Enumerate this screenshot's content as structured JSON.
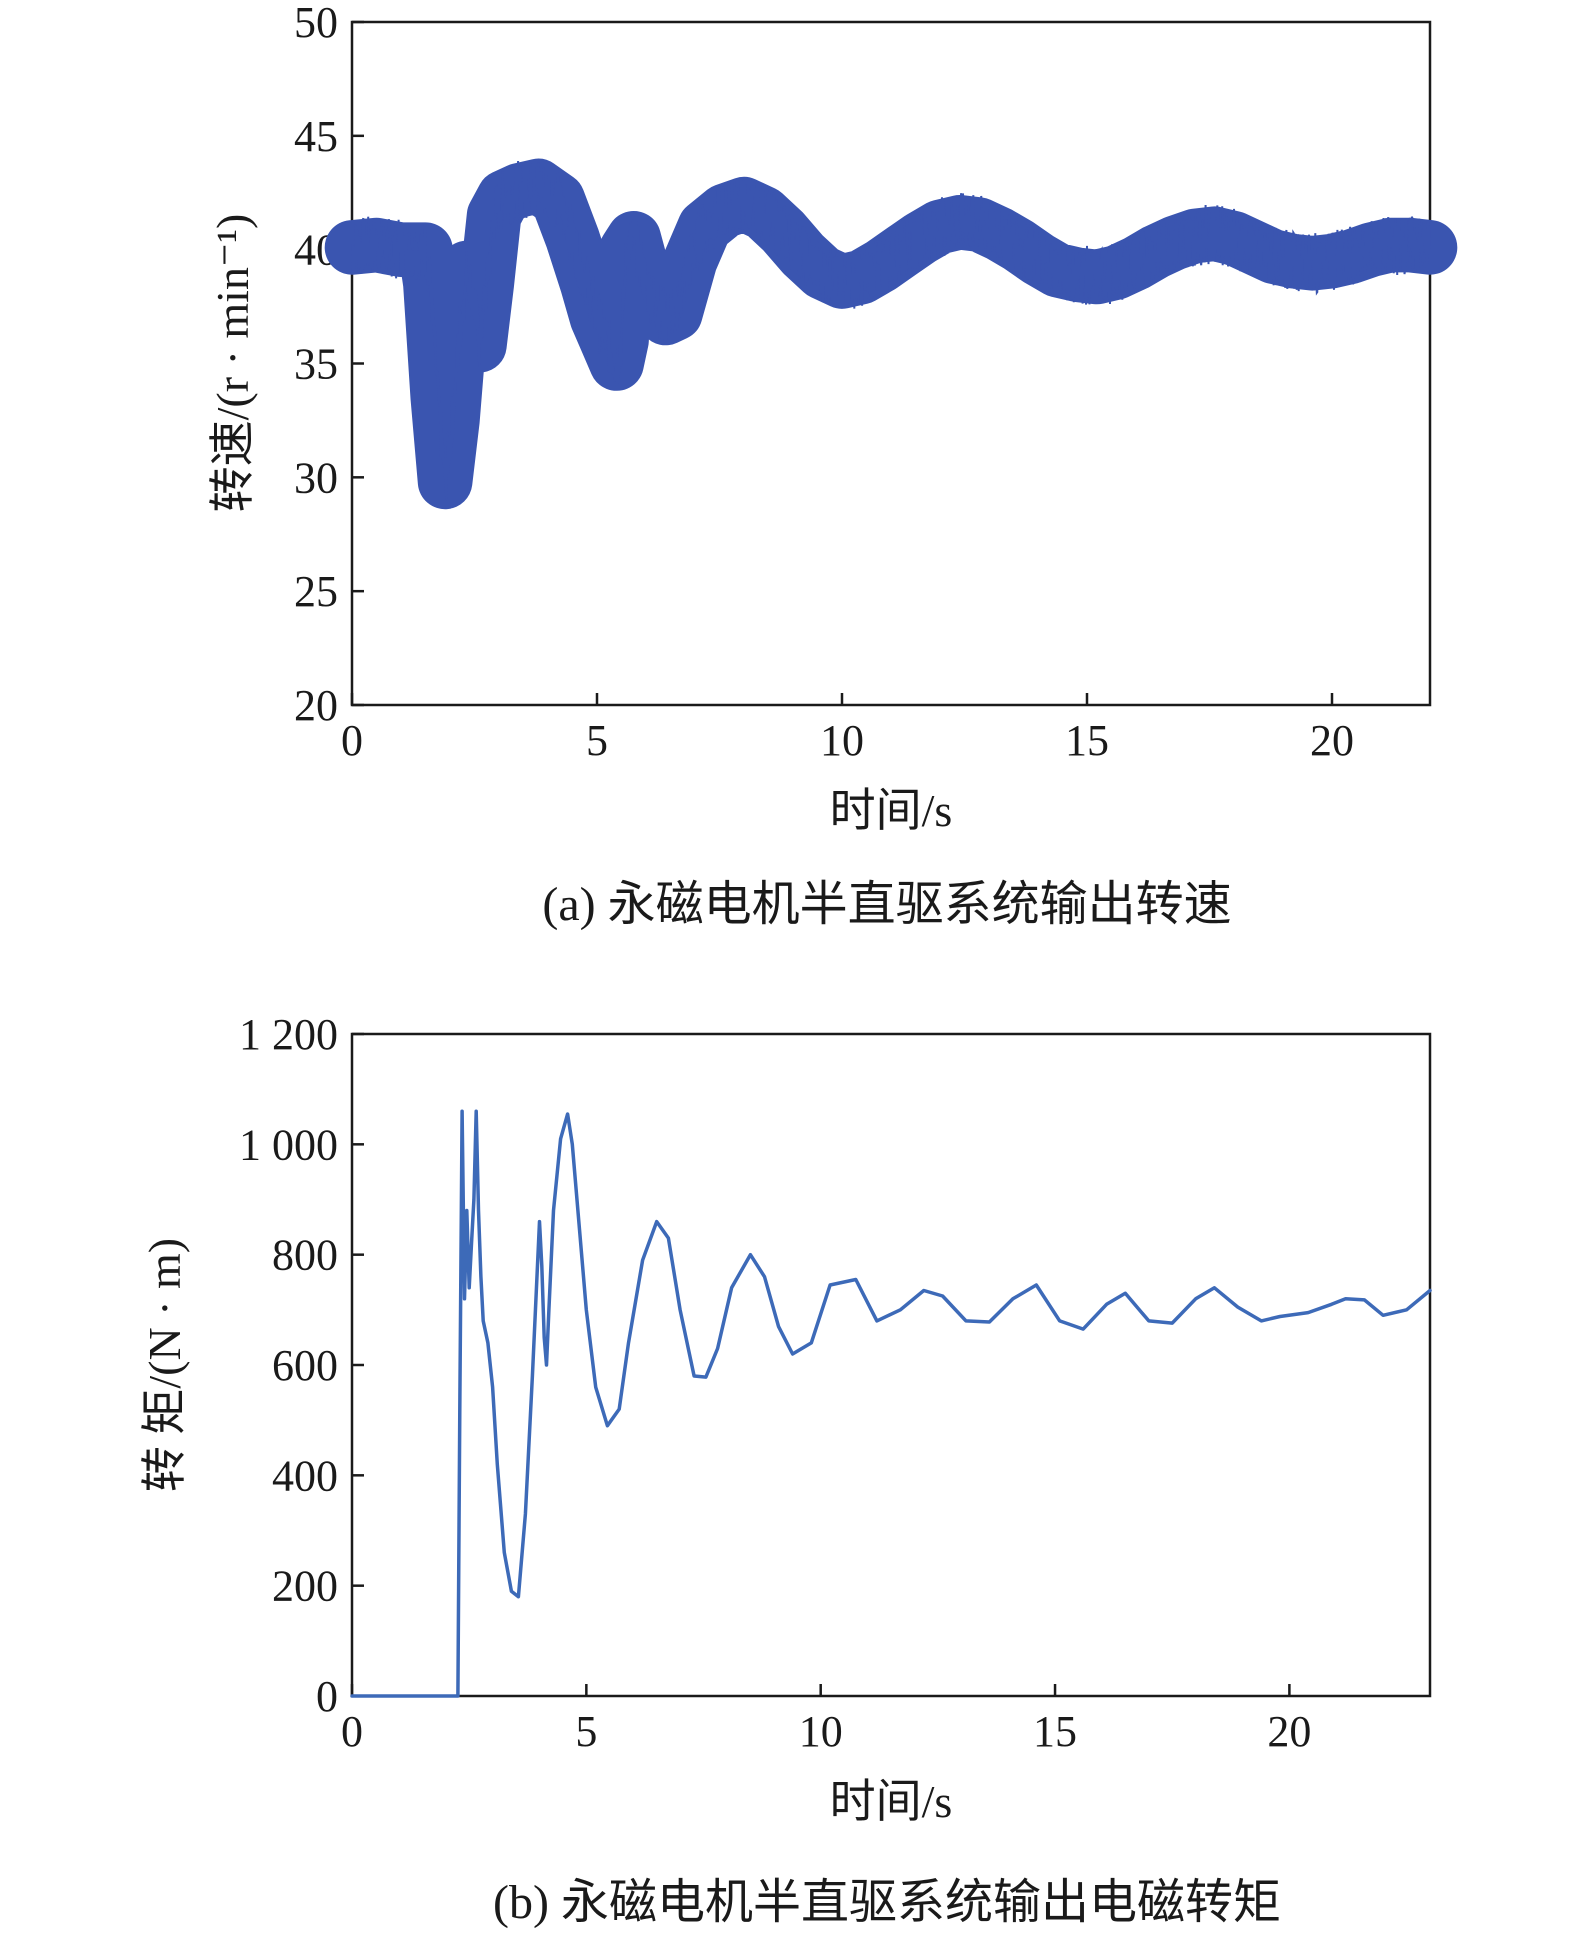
{
  "chart_data": [
    {
      "type": "line",
      "caption": "(a) 永磁电机半直驱系统输出转速",
      "xlabel": "时间/s",
      "ylabel": "转速/(r · min⁻¹)",
      "xlim": [
        0,
        22
      ],
      "ylim": [
        20,
        50
      ],
      "xticks": [
        "0",
        "5",
        "10",
        "15",
        "20"
      ],
      "yticks": [
        "20",
        "25",
        "30",
        "35",
        "40",
        "45",
        "50"
      ],
      "grid": false,
      "color": "#3a55b0",
      "noise_band": 1.2,
      "series": [
        {
          "x": [
            0,
            0.5,
            1.0,
            1.5,
            1.6,
            1.75,
            1.9,
            2.05,
            2.2,
            2.35,
            2.5,
            2.6,
            2.75,
            2.9,
            3.1,
            3.4,
            3.8,
            4.2,
            4.5,
            4.8,
            5.0,
            5.2,
            5.4,
            5.5,
            5.6,
            5.75,
            6.0,
            6.2,
            6.4,
            6.6,
            6.9,
            7.2,
            7.6,
            8.0,
            8.4,
            8.8,
            9.2,
            9.6,
            10.0,
            10.4,
            10.8,
            11.2,
            11.6,
            12.0,
            12.4,
            12.8,
            13.2,
            13.6,
            14.0,
            14.4,
            14.8,
            15.2,
            15.6,
            16.0,
            16.4,
            16.8,
            17.2,
            17.6,
            18.0,
            18.4,
            18.8,
            19.2,
            19.6,
            20.0,
            20.4,
            20.8,
            21.2,
            21.6,
            22.0
          ],
          "y": [
            40.1,
            40.2,
            40.0,
            40.0,
            38.5,
            33.5,
            29.8,
            32.5,
            36.5,
            39.2,
            37.5,
            35.8,
            38.5,
            41.5,
            42.3,
            42.6,
            42.8,
            42.2,
            40.5,
            38.5,
            37.0,
            36.0,
            35.0,
            36.0,
            40.0,
            40.5,
            38.5,
            37.5,
            37.0,
            37.2,
            39.5,
            41.0,
            41.7,
            42.0,
            41.6,
            40.8,
            39.8,
            39.0,
            38.6,
            38.8,
            39.3,
            39.9,
            40.5,
            41.0,
            41.2,
            41.1,
            40.7,
            40.2,
            39.6,
            39.1,
            38.9,
            38.8,
            39.0,
            39.4,
            39.9,
            40.3,
            40.6,
            40.7,
            40.5,
            40.1,
            39.7,
            39.5,
            39.4,
            39.5,
            39.7,
            40.0,
            40.2,
            40.2,
            40.1
          ]
        }
      ]
    },
    {
      "type": "line",
      "caption": "(b) 永磁电机半直驱系统输出电磁转矩",
      "xlabel": "时间/s",
      "ylabel": "转 矩/(N · m)",
      "xlim": [
        0,
        23
      ],
      "ylim": [
        0,
        1200
      ],
      "xticks": [
        "0",
        "5",
        "10",
        "15",
        "20"
      ],
      "yticks": [
        "0",
        "200",
        "400",
        "600",
        "800",
        "1 000",
        "1 200"
      ],
      "grid": false,
      "color": "#3d6ab8",
      "series": [
        {
          "x": [
            0,
            2.2,
            2.26,
            2.3,
            2.35,
            2.4,
            2.45,
            2.5,
            2.55,
            2.6,
            2.65,
            2.7,
            2.75,
            2.8,
            2.9,
            3.0,
            3.1,
            3.25,
            3.4,
            3.55,
            3.7,
            3.85,
            4.0,
            4.05,
            4.1,
            4.15,
            4.2,
            4.3,
            4.45,
            4.6,
            4.7,
            4.85,
            5.0,
            5.2,
            5.45,
            5.7,
            5.9,
            6.2,
            6.5,
            6.75,
            7.0,
            7.3,
            7.55,
            7.8,
            8.1,
            8.5,
            8.8,
            9.1,
            9.4,
            9.8,
            10.2,
            10.75,
            11.2,
            11.7,
            12.2,
            12.6,
            13.1,
            13.6,
            14.1,
            14.6,
            15.1,
            15.6,
            16.1,
            16.5,
            17.0,
            17.5,
            18.0,
            18.4,
            18.9,
            19.4,
            19.8,
            20.4,
            20.9,
            21.2,
            21.6,
            22.0,
            22.5,
            23.0
          ],
          "y": [
            0,
            0,
            0,
            520,
            1060,
            720,
            880,
            740,
            820,
            900,
            1060,
            880,
            760,
            680,
            640,
            560,
            420,
            260,
            190,
            180,
            330,
            580,
            860,
            780,
            650,
            600,
            700,
            880,
            1010,
            1055,
            1000,
            850,
            700,
            560,
            490,
            520,
            640,
            790,
            860,
            830,
            700,
            580,
            578,
            630,
            740,
            800,
            760,
            670,
            620,
            640,
            745,
            755,
            680,
            700,
            735,
            725,
            680,
            678,
            720,
            745,
            680,
            665,
            710,
            730,
            680,
            676,
            720,
            740,
            705,
            680,
            688,
            695,
            710,
            720,
            718,
            690,
            700,
            735
          ]
        }
      ]
    }
  ]
}
